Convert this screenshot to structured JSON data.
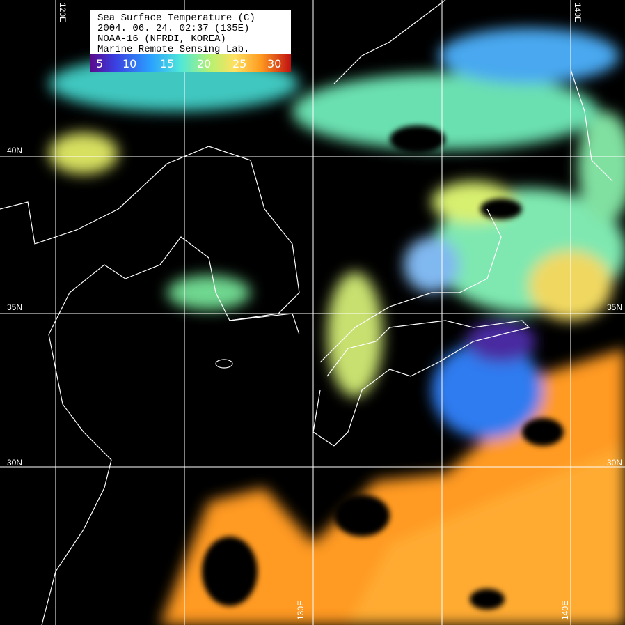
{
  "legend": {
    "lines": [
      "Sea Surface Temperature (C)",
      "2004. 06. 24.  02:37 (135E)",
      "NOAA-16 (NFRDI, KOREA)",
      "Marine Remote Sensing Lab."
    ],
    "scale": [
      "5",
      "10",
      "15",
      "20",
      "25",
      "30"
    ]
  },
  "grid": {
    "top_labels": [
      "120E",
      "140E"
    ],
    "bottom_labels": [
      "130E",
      "140E"
    ],
    "left_labels": [
      "40N",
      "35N",
      "30N"
    ],
    "right_labels": [
      "35N",
      "30N"
    ]
  }
}
